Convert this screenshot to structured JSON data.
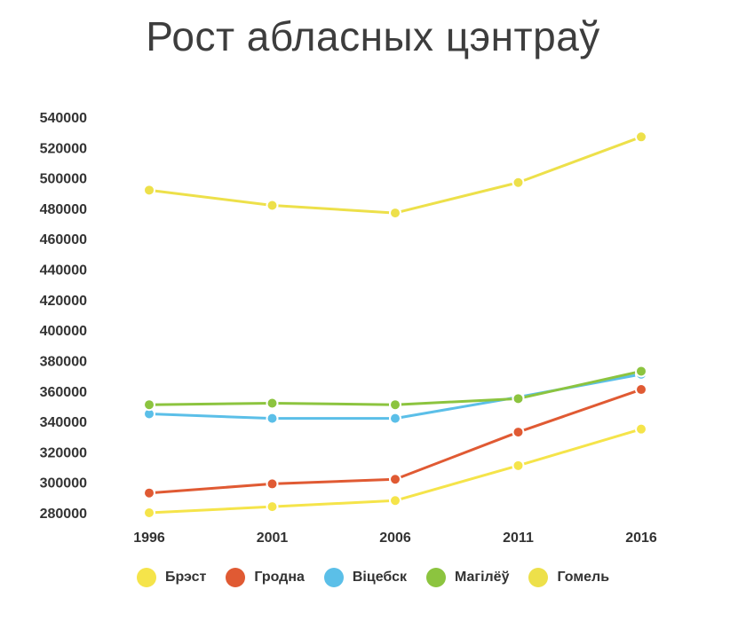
{
  "chart_data": {
    "type": "line",
    "title": "Рост абласных цэнтраў",
    "xlabel": "",
    "ylabel": "",
    "x": [
      "1996",
      "2001",
      "2006",
      "2011",
      "2016"
    ],
    "ylim": [
      280000,
      540000
    ],
    "yticks": [
      280000,
      300000,
      320000,
      340000,
      360000,
      380000,
      400000,
      420000,
      440000,
      460000,
      480000,
      500000,
      520000,
      540000
    ],
    "grid": false,
    "legend_position": "bottom",
    "series": [
      {
        "name": "Брэст",
        "color": "#f5e44a",
        "values": [
          280000,
          284000,
          288000,
          311000,
          335000
        ]
      },
      {
        "name": "Гродна",
        "color": "#e05a33",
        "values": [
          293000,
          299000,
          302000,
          333000,
          361000
        ]
      },
      {
        "name": "Віцебск",
        "color": "#5bbfe8",
        "values": [
          345000,
          342000,
          342000,
          356000,
          371000
        ]
      },
      {
        "name": "Магілёў",
        "color": "#8cc43f",
        "values": [
          351000,
          352000,
          351000,
          355000,
          373000
        ]
      },
      {
        "name": "Гомель",
        "color": "#ede04a",
        "values": [
          492000,
          482000,
          477000,
          497000,
          527000
        ]
      }
    ]
  }
}
